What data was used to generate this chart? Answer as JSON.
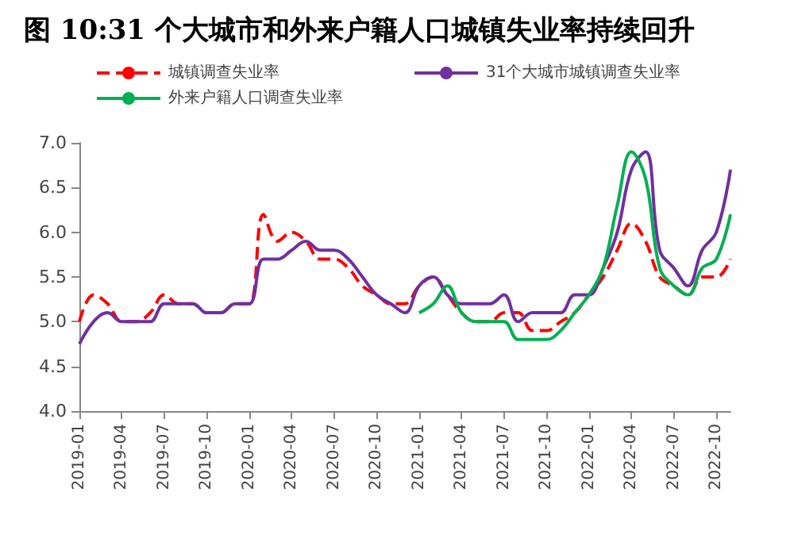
{
  "chart_data": {
    "type": "line",
    "title": "图 10:31 个大城市和外来户籍人口城镇失业率持续回升",
    "categories": [
      "2019-01",
      null,
      null,
      "2019-04",
      null,
      null,
      "2019-07",
      null,
      null,
      "2019-10",
      null,
      null,
      "2020-01",
      null,
      null,
      "2020-04",
      null,
      null,
      "2020-07",
      null,
      null,
      "2020-10",
      null,
      null,
      "2021-01",
      null,
      null,
      "2021-04",
      null,
      null,
      "2021-07",
      null,
      null,
      "2021-10",
      null,
      null,
      "2022-01",
      null,
      null,
      "2022-04",
      null,
      null,
      "2022-07",
      null,
      null,
      "2022-10",
      null
    ],
    "series": [
      {
        "name": "城镇调查失业率",
        "color": "#ff0000",
        "line_style": "dashed",
        "values": [
          5.0,
          5.3,
          5.2,
          5.0,
          5.0,
          5.1,
          5.3,
          5.2,
          5.2,
          5.1,
          5.1,
          5.2,
          5.2,
          6.2,
          5.9,
          6.0,
          5.9,
          5.7,
          5.7,
          5.6,
          5.4,
          5.3,
          5.2,
          5.2,
          5.4,
          5.5,
          5.3,
          5.1,
          5.0,
          5.0,
          5.1,
          5.1,
          4.9,
          4.9,
          5.0,
          5.1,
          5.3,
          5.5,
          5.8,
          6.1,
          5.9,
          5.5,
          5.4,
          5.3,
          5.5,
          5.5,
          5.7
        ]
      },
      {
        "name": "31个大城市城镇调查失业率",
        "color": "#7030a0",
        "line_style": "solid",
        "values": [
          4.75,
          5.0,
          5.1,
          5.0,
          5.0,
          5.0,
          5.2,
          5.2,
          5.2,
          5.1,
          5.1,
          5.2,
          5.2,
          5.7,
          5.7,
          5.8,
          5.9,
          5.8,
          5.8,
          5.7,
          5.5,
          5.3,
          5.2,
          5.1,
          5.4,
          5.5,
          5.3,
          5.2,
          5.2,
          5.2,
          5.3,
          5.0,
          5.1,
          5.1,
          5.1,
          5.3,
          5.3,
          5.6,
          6.0,
          6.7,
          6.9,
          5.8,
          5.6,
          5.4,
          5.8,
          6.0,
          6.7
        ]
      },
      {
        "name": "外来户籍人口调查失业率",
        "color": "#00b050",
        "line_style": "solid",
        "values": [
          null,
          null,
          null,
          null,
          null,
          null,
          null,
          null,
          null,
          null,
          null,
          null,
          null,
          null,
          null,
          null,
          null,
          null,
          null,
          null,
          null,
          null,
          null,
          null,
          5.1,
          5.2,
          5.4,
          5.1,
          5.0,
          5.0,
          5.0,
          4.8,
          4.8,
          4.8,
          4.9,
          5.1,
          5.3,
          5.6,
          6.3,
          6.9,
          6.6,
          5.6,
          5.4,
          5.3,
          5.6,
          5.7,
          6.2
        ]
      }
    ],
    "ylim": [
      4.0,
      7.0
    ],
    "yticks": [
      {
        "value": 4,
        "label": "4.0"
      },
      4.5,
      {
        "value": 5,
        "label": "5.0"
      },
      5.5,
      {
        "value": 6,
        "label": "6.0"
      },
      6.5,
      {
        "value": 7,
        "label": "7.0"
      }
    ],
    "grid": false,
    "legend": "top",
    "marker": "none"
  }
}
